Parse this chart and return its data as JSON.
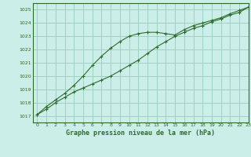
{
  "title": "Graphe pression niveau de la mer (hPa)",
  "background_color": "#cceee8",
  "plot_bg_color": "#cceee8",
  "line_color": "#2d6b2d",
  "grid_color": "#99ccbb",
  "xlim": [
    -0.5,
    23
  ],
  "ylim": [
    1016.5,
    1025.5
  ],
  "yticks": [
    1017,
    1018,
    1019,
    1020,
    1021,
    1022,
    1023,
    1024,
    1025
  ],
  "xticks": [
    0,
    1,
    2,
    3,
    4,
    5,
    6,
    7,
    8,
    9,
    10,
    11,
    12,
    13,
    14,
    15,
    16,
    17,
    18,
    19,
    20,
    21,
    22,
    23
  ],
  "series1_x": [
    0,
    1,
    2,
    3,
    4,
    5,
    6,
    7,
    8,
    9,
    10,
    11,
    12,
    13,
    14,
    15,
    16,
    17,
    18,
    19,
    20,
    21,
    22,
    23
  ],
  "series1_y": [
    1017.1,
    1017.5,
    1018.0,
    1018.4,
    1018.8,
    1019.1,
    1019.4,
    1019.7,
    1020.0,
    1020.4,
    1020.8,
    1021.2,
    1021.7,
    1022.2,
    1022.6,
    1023.0,
    1023.3,
    1023.6,
    1023.8,
    1024.1,
    1024.3,
    1024.6,
    1024.8,
    1025.2
  ],
  "series2_x": [
    0,
    1,
    2,
    3,
    4,
    5,
    6,
    7,
    8,
    9,
    10,
    11,
    12,
    13,
    14,
    15,
    16,
    17,
    18,
    19,
    20,
    21,
    22,
    23
  ],
  "series2_y": [
    1017.1,
    1017.7,
    1018.2,
    1018.7,
    1019.3,
    1020.0,
    1020.8,
    1021.5,
    1022.1,
    1022.6,
    1023.0,
    1023.2,
    1023.3,
    1023.3,
    1023.2,
    1023.1,
    1023.5,
    1023.8,
    1024.0,
    1024.2,
    1024.4,
    1024.7,
    1024.95,
    1025.2
  ]
}
